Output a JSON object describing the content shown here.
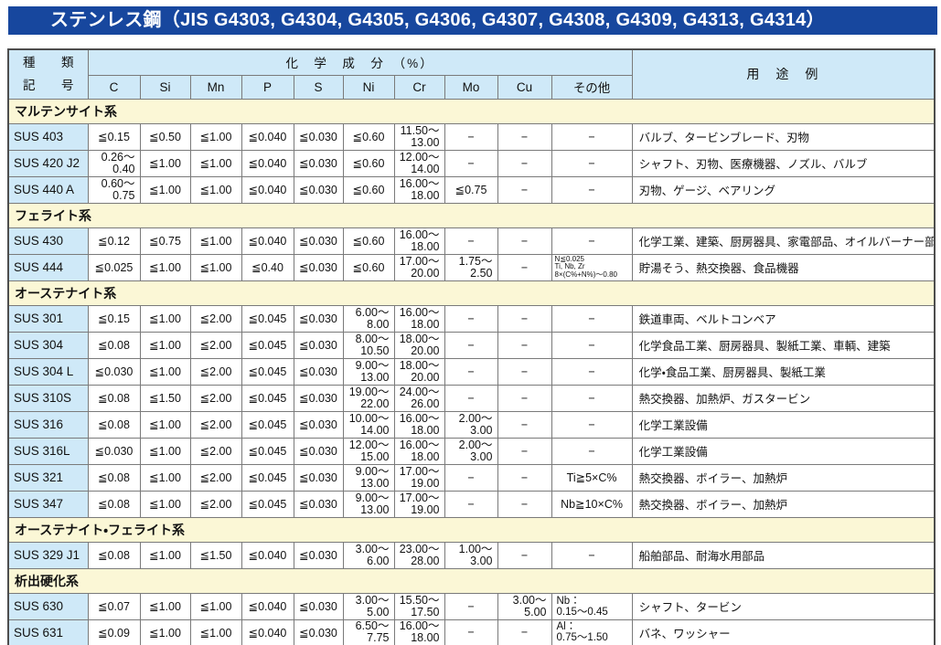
{
  "title": "ステンレス鋼（JIS G4303, G4304, G4305, G4306, G4307, G4308, G4309, G4313, G4314）",
  "colors": {
    "title_bar": "#17479e",
    "header_blue": "#cfe9f8",
    "section_yellow": "#fbf7d6",
    "code_blue": "#cfe9f8",
    "border": "#7a7a7a",
    "border_outer": "#4d4d4d"
  },
  "header": {
    "kind_top": "種",
    "kind_top2": "類",
    "kind_bottom": "記",
    "kind_bottom2": "号",
    "chem": "化　学　成　分　（%）",
    "elements": [
      "C",
      "Si",
      "Mn",
      "P",
      "S",
      "Ni",
      "Cr",
      "Mo",
      "Cu",
      "その他"
    ],
    "usage": "用　途　例"
  },
  "sections": [
    {
      "name": "マルテンサイト系",
      "rows": [
        {
          "code": "SUS 403",
          "cells": [
            "≦0.15",
            "≦0.50",
            "≦1.00",
            "≦0.040",
            "≦0.030",
            "≦0.60",
            "11.50～\n13.00",
            "−",
            "−",
            "−"
          ],
          "usage": "バルブ、タービンブレード、刃物"
        },
        {
          "code": "SUS 420 J2",
          "cells": [
            "0.26～\n0.40",
            "≦1.00",
            "≦1.00",
            "≦0.040",
            "≦0.030",
            "≦0.60",
            "12.00～\n14.00",
            "−",
            "−",
            "−"
          ],
          "usage": "シャフト、刃物、医療機器、ノズル、バルブ"
        },
        {
          "code": "SUS 440 A",
          "cells": [
            "0.60～\n0.75",
            "≦1.00",
            "≦1.00",
            "≦0.040",
            "≦0.030",
            "≦0.60",
            "16.00～\n18.00",
            "≦0.75",
            "−",
            "−"
          ],
          "usage": "刃物、ゲージ、ベアリング"
        }
      ]
    },
    {
      "name": "フェライト系",
      "rows": [
        {
          "code": "SUS 430",
          "cells": [
            "≦0.12",
            "≦0.75",
            "≦1.00",
            "≦0.040",
            "≦0.030",
            "≦0.60",
            "16.00～\n18.00",
            "−",
            "−",
            "−"
          ],
          "usage": "化学工業、建築、厨房器具、家電部品、オイルバーナー部品"
        },
        {
          "code": "SUS 444",
          "cells": [
            "≦0.025",
            "≦1.00",
            "≦1.00",
            "≦0.40",
            "≦0.030",
            "≦0.60",
            "17.00～\n20.00",
            "1.75～\n2.50",
            "−",
            "N≦0.025\nTi, Nb, Zr\n8×(C%+N%)～0.80"
          ],
          "usage": "貯湯そう、熱交換器、食品機器"
        }
      ]
    },
    {
      "name": "オーステナイト系",
      "rows": [
        {
          "code": "SUS 301",
          "cells": [
            "≦0.15",
            "≦1.00",
            "≦2.00",
            "≦0.045",
            "≦0.030",
            "6.00～\n8.00",
            "16.00～\n18.00",
            "−",
            "−",
            "−"
          ],
          "usage": "鉄道車両、ベルトコンベア"
        },
        {
          "code": "SUS 304",
          "cells": [
            "≦0.08",
            "≦1.00",
            "≦2.00",
            "≦0.045",
            "≦0.030",
            "8.00～\n10.50",
            "18.00～\n20.00",
            "−",
            "−",
            "−"
          ],
          "usage": "化学食品工業、厨房器具、製紙工業、車輌、建築"
        },
        {
          "code": "SUS 304 L",
          "cells": [
            "≦0.030",
            "≦1.00",
            "≦2.00",
            "≦0.045",
            "≦0.030",
            "9.00～\n13.00",
            "18.00～\n20.00",
            "−",
            "−",
            "−"
          ],
          "usage": "化学・食品工業、厨房器具、製紙工業"
        },
        {
          "code": "SUS 310S",
          "cells": [
            "≦0.08",
            "≦1.50",
            "≦2.00",
            "≦0.045",
            "≦0.030",
            "19.00～\n22.00",
            "24.00～\n26.00",
            "−",
            "−",
            "−"
          ],
          "usage": "熱交換器、加熱炉、ガスタービン"
        },
        {
          "code": "SUS 316",
          "cells": [
            "≦0.08",
            "≦1.00",
            "≦2.00",
            "≦0.045",
            "≦0.030",
            "10.00～\n14.00",
            "16.00～\n18.00",
            "2.00～\n3.00",
            "−",
            "−"
          ],
          "usage": "化学工業設備"
        },
        {
          "code": "SUS 316L",
          "cells": [
            "≦0.030",
            "≦1.00",
            "≦2.00",
            "≦0.045",
            "≦0.030",
            "12.00～\n15.00",
            "16.00～\n18.00",
            "2.00～\n3.00",
            "−",
            "−"
          ],
          "usage": "化学工業設備"
        },
        {
          "code": "SUS 321",
          "cells": [
            "≦0.08",
            "≦1.00",
            "≦2.00",
            "≦0.045",
            "≦0.030",
            "9.00～\n13.00",
            "17.00～\n19.00",
            "−",
            "−",
            "Ti≧5×C%"
          ],
          "usage": "熱交換器、ボイラー、加熱炉"
        },
        {
          "code": "SUS 347",
          "cells": [
            "≦0.08",
            "≦1.00",
            "≦2.00",
            "≦0.045",
            "≦0.030",
            "9.00～\n13.00",
            "17.00～\n19.00",
            "−",
            "−",
            "Nb≧10×C%"
          ],
          "usage": "熱交換器、ボイラー、加熱炉"
        }
      ]
    },
    {
      "name": "オーステナイト・フェライト系",
      "rows": [
        {
          "code": "SUS 329 J1",
          "cells": [
            "≦0.08",
            "≦1.00",
            "≦1.50",
            "≦0.040",
            "≦0.030",
            "3.00～\n6.00",
            "23.00～\n28.00",
            "1.00～\n3.00",
            "−",
            "−"
          ],
          "usage": "船舶部品、耐海水用部品"
        }
      ]
    },
    {
      "name": "析出硬化系",
      "rows": [
        {
          "code": "SUS 630",
          "cells": [
            "≦0.07",
            "≦1.00",
            "≦1.00",
            "≦0.040",
            "≦0.030",
            "3.00～\n5.00",
            "15.50～\n17.50",
            "−",
            "3.00～\n5.00",
            "Nb：\n0.15～0.45"
          ],
          "usage": "シャフト、タービン"
        },
        {
          "code": "SUS 631",
          "cells": [
            "≦0.09",
            "≦1.00",
            "≦1.00",
            "≦0.040",
            "≦0.030",
            "6.50～\n7.75",
            "16.00～\n18.00",
            "−",
            "−",
            "Al：\n0.75～1.50"
          ],
          "usage": "バネ、ワッシャー"
        }
      ]
    }
  ]
}
